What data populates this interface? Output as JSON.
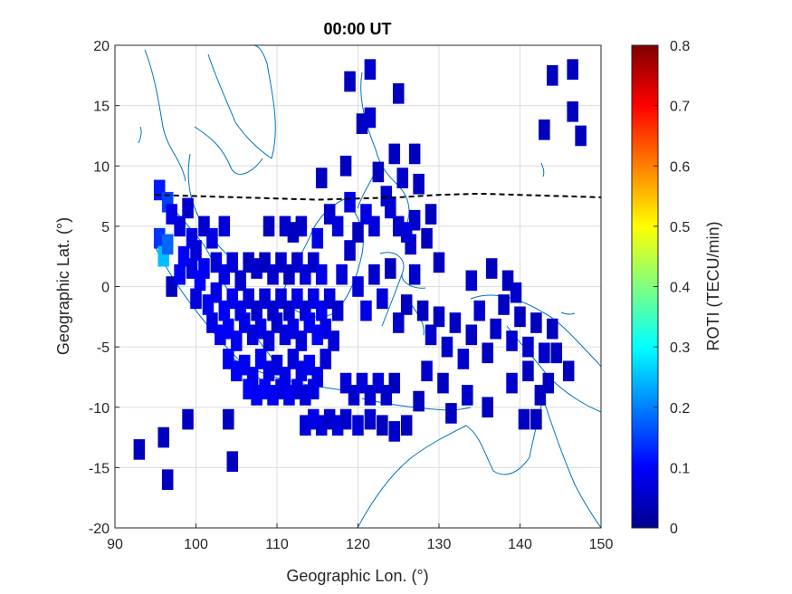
{
  "chart_data": {
    "type": "heatmap",
    "title": "00:00 UT",
    "xlabel": "Geographic Lon. (°)",
    "ylabel": "Geographic Lat. (°)",
    "xlim": [
      90,
      150
    ],
    "ylim": [
      -20,
      20
    ],
    "xticks": [
      "90",
      "100",
      "110",
      "120",
      "130",
      "140",
      "150"
    ],
    "yticks": [
      "-20",
      "-15",
      "-10",
      "-5",
      "0",
      "5",
      "10",
      "15",
      "20"
    ],
    "grid": true,
    "colorbar": {
      "label": "ROTI (TECU/min)",
      "range": [
        0,
        0.8
      ],
      "ticks": [
        "0",
        "0.1",
        "0.2",
        "0.3",
        "0.4",
        "0.5",
        "0.6",
        "0.7",
        "0.8"
      ],
      "colormap": "jet"
    },
    "magnetic_equator": {
      "style": "dashed black",
      "lon": [
        95,
        100,
        105,
        110,
        115,
        120,
        125,
        130,
        135,
        140,
        145,
        150
      ],
      "lat": [
        7.6,
        7.5,
        7.4,
        7.3,
        7.2,
        7.3,
        7.4,
        7.6,
        7.7,
        7.6,
        7.5,
        7.4
      ]
    },
    "cells": [
      {
        "lon": 95.5,
        "lat": 8.0,
        "v": 0.12
      },
      {
        "lon": 96.5,
        "lat": 7.0,
        "v": 0.15
      },
      {
        "lon": 95.5,
        "lat": 4.0,
        "v": 0.14
      },
      {
        "lon": 96.0,
        "lat": 2.5,
        "v": 0.25
      },
      {
        "lon": 96.5,
        "lat": 3.5,
        "v": 0.18
      },
      {
        "lon": 97.0,
        "lat": 6.0,
        "v": 0.08
      },
      {
        "lon": 98.0,
        "lat": 5.0,
        "v": 0.07
      },
      {
        "lon": 99.0,
        "lat": 6.5,
        "v": 0.06
      },
      {
        "lon": 99.5,
        "lat": 4.0,
        "v": 0.08
      },
      {
        "lon": 98.5,
        "lat": 2.5,
        "v": 0.1
      },
      {
        "lon": 100.0,
        "lat": 3.0,
        "v": 0.07
      },
      {
        "lon": 101.0,
        "lat": 5.0,
        "v": 0.06
      },
      {
        "lon": 102.0,
        "lat": 4.0,
        "v": 0.08
      },
      {
        "lon": 103.5,
        "lat": 5.0,
        "v": 0.07
      },
      {
        "lon": 97.0,
        "lat": 0.0,
        "v": 0.05
      },
      {
        "lon": 98.0,
        "lat": 1.0,
        "v": 0.09
      },
      {
        "lon": 99.5,
        "lat": 1.5,
        "v": 0.08
      },
      {
        "lon": 100.5,
        "lat": 0.5,
        "v": 0.1
      },
      {
        "lon": 101.0,
        "lat": 1.5,
        "v": 0.09
      },
      {
        "lon": 102.5,
        "lat": 2.0,
        "v": 0.07
      },
      {
        "lon": 103.5,
        "lat": 1.0,
        "v": 0.08
      },
      {
        "lon": 104.5,
        "lat": 2.0,
        "v": 0.07
      },
      {
        "lon": 105.5,
        "lat": 0.5,
        "v": 0.06
      },
      {
        "lon": 106.5,
        "lat": 2.0,
        "v": 0.05
      },
      {
        "lon": 107.5,
        "lat": 1.5,
        "v": 0.06
      },
      {
        "lon": 108.5,
        "lat": 2.0,
        "v": 0.05
      },
      {
        "lon": 109.5,
        "lat": 1.0,
        "v": 0.06
      },
      {
        "lon": 110.5,
        "lat": 2.0,
        "v": 0.06
      },
      {
        "lon": 111.5,
        "lat": 1.0,
        "v": 0.05
      },
      {
        "lon": 112.5,
        "lat": 2.0,
        "v": 0.06
      },
      {
        "lon": 113.5,
        "lat": 1.0,
        "v": 0.07
      },
      {
        "lon": 114.5,
        "lat": 2.0,
        "v": 0.06
      },
      {
        "lon": 115.5,
        "lat": 1.0,
        "v": 0.08
      },
      {
        "lon": 100.0,
        "lat": -1.0,
        "v": 0.07
      },
      {
        "lon": 101.5,
        "lat": -1.5,
        "v": 0.09
      },
      {
        "lon": 102.5,
        "lat": -0.5,
        "v": 0.08
      },
      {
        "lon": 103.5,
        "lat": -2.0,
        "v": 0.1
      },
      {
        "lon": 104.5,
        "lat": -1.0,
        "v": 0.09
      },
      {
        "lon": 105.5,
        "lat": -2.0,
        "v": 0.08
      },
      {
        "lon": 106.5,
        "lat": -1.0,
        "v": 0.07
      },
      {
        "lon": 107.5,
        "lat": -2.0,
        "v": 0.06
      },
      {
        "lon": 108.5,
        "lat": -1.0,
        "v": 0.07
      },
      {
        "lon": 109.5,
        "lat": -2.0,
        "v": 0.06
      },
      {
        "lon": 110.5,
        "lat": -1.0,
        "v": 0.07
      },
      {
        "lon": 111.5,
        "lat": -2.0,
        "v": 0.06
      },
      {
        "lon": 112.5,
        "lat": -1.0,
        "v": 0.08
      },
      {
        "lon": 113.5,
        "lat": -2.0,
        "v": 0.07
      },
      {
        "lon": 114.5,
        "lat": -1.0,
        "v": 0.08
      },
      {
        "lon": 115.5,
        "lat": -2.0,
        "v": 0.09
      },
      {
        "lon": 116.5,
        "lat": -1.0,
        "v": 0.07
      },
      {
        "lon": 117.5,
        "lat": -2.0,
        "v": 0.06
      },
      {
        "lon": 102.0,
        "lat": -3.0,
        "v": 0.08
      },
      {
        "lon": 103.0,
        "lat": -4.0,
        "v": 0.09
      },
      {
        "lon": 104.0,
        "lat": -3.5,
        "v": 0.1
      },
      {
        "lon": 105.0,
        "lat": -4.5,
        "v": 0.09
      },
      {
        "lon": 106.0,
        "lat": -3.0,
        "v": 0.08
      },
      {
        "lon": 107.0,
        "lat": -4.0,
        "v": 0.07
      },
      {
        "lon": 108.0,
        "lat": -3.5,
        "v": 0.08
      },
      {
        "lon": 109.0,
        "lat": -4.5,
        "v": 0.07
      },
      {
        "lon": 110.0,
        "lat": -3.0,
        "v": 0.06
      },
      {
        "lon": 111.0,
        "lat": -4.0,
        "v": 0.07
      },
      {
        "lon": 112.0,
        "lat": -3.5,
        "v": 0.08
      },
      {
        "lon": 113.0,
        "lat": -4.5,
        "v": 0.07
      },
      {
        "lon": 114.0,
        "lat": -3.0,
        "v": 0.09
      },
      {
        "lon": 115.0,
        "lat": -4.0,
        "v": 0.1
      },
      {
        "lon": 116.0,
        "lat": -3.5,
        "v": 0.08
      },
      {
        "lon": 117.0,
        "lat": -4.5,
        "v": 0.07
      },
      {
        "lon": 104.0,
        "lat": -6.0,
        "v": 0.09
      },
      {
        "lon": 105.0,
        "lat": -7.0,
        "v": 0.1
      },
      {
        "lon": 106.0,
        "lat": -6.5,
        "v": 0.09
      },
      {
        "lon": 107.0,
        "lat": -7.5,
        "v": 0.08
      },
      {
        "lon": 108.0,
        "lat": -6.0,
        "v": 0.09
      },
      {
        "lon": 109.0,
        "lat": -7.0,
        "v": 0.08
      },
      {
        "lon": 110.0,
        "lat": -6.5,
        "v": 0.07
      },
      {
        "lon": 111.0,
        "lat": -7.5,
        "v": 0.08
      },
      {
        "lon": 112.0,
        "lat": -6.0,
        "v": 0.07
      },
      {
        "lon": 113.0,
        "lat": -7.0,
        "v": 0.08
      },
      {
        "lon": 114.0,
        "lat": -6.5,
        "v": 0.09
      },
      {
        "lon": 115.0,
        "lat": -7.5,
        "v": 0.08
      },
      {
        "lon": 116.0,
        "lat": -6.0,
        "v": 0.07
      },
      {
        "lon": 106.5,
        "lat": -8.5,
        "v": 0.1
      },
      {
        "lon": 107.5,
        "lat": -9.0,
        "v": 0.09
      },
      {
        "lon": 108.5,
        "lat": -8.5,
        "v": 0.1
      },
      {
        "lon": 109.5,
        "lat": -9.0,
        "v": 0.09
      },
      {
        "lon": 110.5,
        "lat": -8.5,
        "v": 0.08
      },
      {
        "lon": 111.5,
        "lat": -9.0,
        "v": 0.09
      },
      {
        "lon": 112.5,
        "lat": -8.5,
        "v": 0.08
      },
      {
        "lon": 113.5,
        "lat": -9.0,
        "v": 0.07
      },
      {
        "lon": 114.5,
        "lat": -8.5,
        "v": 0.08
      },
      {
        "lon": 118.5,
        "lat": -8.0,
        "v": 0.07
      },
      {
        "lon": 119.5,
        "lat": -9.0,
        "v": 0.06
      },
      {
        "lon": 120.5,
        "lat": -8.0,
        "v": 0.07
      },
      {
        "lon": 121.5,
        "lat": -9.0,
        "v": 0.06
      },
      {
        "lon": 122.5,
        "lat": -8.0,
        "v": 0.07
      },
      {
        "lon": 123.5,
        "lat": -9.0,
        "v": 0.06
      },
      {
        "lon": 124.5,
        "lat": -8.0,
        "v": 0.05
      },
      {
        "lon": 113.5,
        "lat": -11.5,
        "v": 0.07
      },
      {
        "lon": 114.5,
        "lat": -11.0,
        "v": 0.08
      },
      {
        "lon": 115.5,
        "lat": -11.5,
        "v": 0.07
      },
      {
        "lon": 116.5,
        "lat": -11.0,
        "v": 0.06
      },
      {
        "lon": 117.5,
        "lat": -11.5,
        "v": 0.07
      },
      {
        "lon": 118.5,
        "lat": -11.0,
        "v": 0.06
      },
      {
        "lon": 120.0,
        "lat": -11.5,
        "v": 0.07
      },
      {
        "lon": 121.5,
        "lat": -11.0,
        "v": 0.06
      },
      {
        "lon": 123.0,
        "lat": -11.5,
        "v": 0.05
      },
      {
        "lon": 124.5,
        "lat": -12.0,
        "v": 0.06
      },
      {
        "lon": 126.0,
        "lat": -11.5,
        "v": 0.05
      },
      {
        "lon": 118.0,
        "lat": 1.0,
        "v": 0.07
      },
      {
        "lon": 119.0,
        "lat": 3.0,
        "v": 0.06
      },
      {
        "lon": 120.0,
        "lat": 4.5,
        "v": 0.05
      },
      {
        "lon": 120.0,
        "lat": 0.0,
        "v": 0.07
      },
      {
        "lon": 121.0,
        "lat": -2.0,
        "v": 0.08
      },
      {
        "lon": 122.0,
        "lat": 1.0,
        "v": 0.06
      },
      {
        "lon": 123.0,
        "lat": -1.0,
        "v": 0.07
      },
      {
        "lon": 124.0,
        "lat": 1.5,
        "v": 0.05
      },
      {
        "lon": 125.0,
        "lat": -3.0,
        "v": 0.06
      },
      {
        "lon": 126.0,
        "lat": -1.5,
        "v": 0.05
      },
      {
        "lon": 127.0,
        "lat": 1.0,
        "v": 0.06
      },
      {
        "lon": 128.0,
        "lat": -2.0,
        "v": 0.05
      },
      {
        "lon": 129.0,
        "lat": -4.0,
        "v": 0.06
      },
      {
        "lon": 130.0,
        "lat": -2.5,
        "v": 0.05
      },
      {
        "lon": 131.0,
        "lat": -5.0,
        "v": 0.06
      },
      {
        "lon": 132.0,
        "lat": -3.0,
        "v": 0.05
      },
      {
        "lon": 133.0,
        "lat": -6.0,
        "v": 0.06
      },
      {
        "lon": 134.0,
        "lat": -4.0,
        "v": 0.05
      },
      {
        "lon": 135.0,
        "lat": -2.0,
        "v": 0.06
      },
      {
        "lon": 136.0,
        "lat": -5.5,
        "v": 0.05
      },
      {
        "lon": 137.0,
        "lat": -3.5,
        "v": 0.06
      },
      {
        "lon": 138.0,
        "lat": -1.5,
        "v": 0.05
      },
      {
        "lon": 139.0,
        "lat": -4.5,
        "v": 0.06
      },
      {
        "lon": 140.0,
        "lat": -2.5,
        "v": 0.05
      },
      {
        "lon": 141.0,
        "lat": -5.0,
        "v": 0.06
      },
      {
        "lon": 142.0,
        "lat": -3.0,
        "v": 0.05
      },
      {
        "lon": 143.0,
        "lat": -5.5,
        "v": 0.06
      },
      {
        "lon": 144.0,
        "lat": -3.5,
        "v": 0.05
      },
      {
        "lon": 141.0,
        "lat": -7.0,
        "v": 0.05
      },
      {
        "lon": 139.0,
        "lat": -8.0,
        "v": 0.06
      },
      {
        "lon": 142.5,
        "lat": -9.0,
        "v": 0.05
      },
      {
        "lon": 133.5,
        "lat": -9.0,
        "v": 0.06
      },
      {
        "lon": 130.5,
        "lat": -8.0,
        "v": 0.05
      },
      {
        "lon": 128.5,
        "lat": -7.0,
        "v": 0.06
      },
      {
        "lon": 127.5,
        "lat": -9.5,
        "v": 0.05
      },
      {
        "lon": 131.5,
        "lat": -10.5,
        "v": 0.05
      },
      {
        "lon": 136.5,
        "lat": 1.5,
        "v": 0.05
      },
      {
        "lon": 134.0,
        "lat": 0.5,
        "v": 0.06
      },
      {
        "lon": 138.5,
        "lat": 0.5,
        "v": 0.05
      },
      {
        "lon": 139.5,
        "lat": -0.5,
        "v": 0.06
      },
      {
        "lon": 126.5,
        "lat": 3.5,
        "v": 0.06
      },
      {
        "lon": 128.5,
        "lat": 4.0,
        "v": 0.05
      },
      {
        "lon": 130.0,
        "lat": 2.0,
        "v": 0.05
      },
      {
        "lon": 127.0,
        "lat": 5.5,
        "v": 0.06
      },
      {
        "lon": 129.0,
        "lat": 6.0,
        "v": 0.05
      },
      {
        "lon": 122.0,
        "lat": 5.0,
        "v": 0.07
      },
      {
        "lon": 121.0,
        "lat": 6.0,
        "v": 0.08
      },
      {
        "lon": 124.0,
        "lat": 6.5,
        "v": 0.07
      },
      {
        "lon": 125.0,
        "lat": 5.0,
        "v": 0.06
      },
      {
        "lon": 126.0,
        "lat": 4.5,
        "v": 0.07
      },
      {
        "lon": 119.0,
        "lat": 7.0,
        "v": 0.08
      },
      {
        "lon": 123.5,
        "lat": 7.5,
        "v": 0.06
      },
      {
        "lon": 127.5,
        "lat": 8.5,
        "v": 0.05
      },
      {
        "lon": 125.5,
        "lat": 9.0,
        "v": 0.06
      },
      {
        "lon": 122.5,
        "lat": 9.5,
        "v": 0.05
      },
      {
        "lon": 115.5,
        "lat": 9.0,
        "v": 0.05
      },
      {
        "lon": 116.5,
        "lat": 6.0,
        "v": 0.06
      },
      {
        "lon": 117.5,
        "lat": 5.0,
        "v": 0.07
      },
      {
        "lon": 115.0,
        "lat": 4.0,
        "v": 0.08
      },
      {
        "lon": 113.0,
        "lat": 5.0,
        "v": 0.06
      },
      {
        "lon": 112.0,
        "lat": 4.5,
        "v": 0.05
      },
      {
        "lon": 111.0,
        "lat": 5.0,
        "v": 0.06
      },
      {
        "lon": 109.0,
        "lat": 5.0,
        "v": 0.05
      },
      {
        "lon": 118.5,
        "lat": 10.0,
        "v": 0.05
      },
      {
        "lon": 120.5,
        "lat": 13.5,
        "v": 0.05
      },
      {
        "lon": 121.5,
        "lat": 14.0,
        "v": 0.06
      },
      {
        "lon": 119.0,
        "lat": 17.0,
        "v": 0.05
      },
      {
        "lon": 121.5,
        "lat": 18.0,
        "v": 0.06
      },
      {
        "lon": 125.0,
        "lat": 16.0,
        "v": 0.05
      },
      {
        "lon": 124.5,
        "lat": 11.0,
        "v": 0.05
      },
      {
        "lon": 127.0,
        "lat": 11.0,
        "v": 0.05
      },
      {
        "lon": 143.0,
        "lat": 13.0,
        "v": 0.05
      },
      {
        "lon": 144.0,
        "lat": 17.5,
        "v": 0.05
      },
      {
        "lon": 146.5,
        "lat": 18.0,
        "v": 0.05
      },
      {
        "lon": 146.5,
        "lat": 14.5,
        "v": 0.05
      },
      {
        "lon": 147.5,
        "lat": 12.5,
        "v": 0.05
      },
      {
        "lon": 93.0,
        "lat": -13.5,
        "v": 0.05
      },
      {
        "lon": 96.0,
        "lat": -12.5,
        "v": 0.05
      },
      {
        "lon": 99.0,
        "lat": -11.0,
        "v": 0.05
      },
      {
        "lon": 96.5,
        "lat": -16.0,
        "v": 0.05
      },
      {
        "lon": 104.0,
        "lat": -11.0,
        "v": 0.05
      },
      {
        "lon": 104.5,
        "lat": -14.5,
        "v": 0.05
      },
      {
        "lon": 142.0,
        "lat": -11.0,
        "v": 0.05
      },
      {
        "lon": 140.5,
        "lat": -11.0,
        "v": 0.05
      },
      {
        "lon": 136.0,
        "lat": -10.0,
        "v": 0.05
      },
      {
        "lon": 144.5,
        "lat": -5.5,
        "v": 0.05
      },
      {
        "lon": 146.0,
        "lat": -7.0,
        "v": 0.05
      },
      {
        "lon": 143.5,
        "lat": -8.0,
        "v": 0.05
      }
    ]
  },
  "coastlines": {
    "color": "#0072BD"
  }
}
